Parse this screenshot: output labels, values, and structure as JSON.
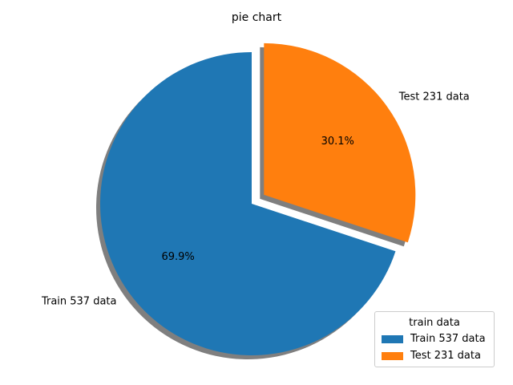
{
  "chart_data": {
    "type": "pie",
    "title": "pie chart",
    "slices": [
      {
        "label": "Train 537 data",
        "value": 537,
        "percent_label": "69.9%",
        "color": "#1f77b4",
        "explode": 0.0
      },
      {
        "label": "Test 231 data",
        "value": 231,
        "percent_label": "30.1%",
        "color": "#ff7f0e",
        "explode": 0.1
      }
    ],
    "start_angle": 90,
    "shadow": true,
    "legend": {
      "title": "train data",
      "placement": "lower-right",
      "entries": [
        "Train 537 data",
        "Test 231 data"
      ]
    }
  }
}
